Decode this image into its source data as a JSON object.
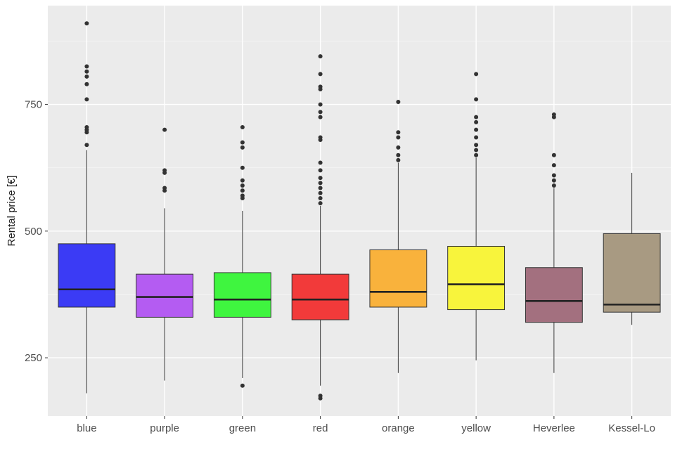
{
  "chart_data": {
    "type": "boxplot",
    "ylabel": "Rental price [€]",
    "xlabel": "",
    "ylim": [
      135,
      945
    ],
    "yticks": [
      250,
      500,
      750
    ],
    "grid": true,
    "legend": "none",
    "categories": [
      "blue",
      "purple",
      "green",
      "red",
      "orange",
      "yellow",
      "Heverlee",
      "Kessel-Lo"
    ],
    "colors": [
      "#3b3bf5",
      "#b45cf2",
      "#3ff53f",
      "#f23a3a",
      "#f9b23c",
      "#f8f43c",
      "#a3707f",
      "#a89a82"
    ],
    "series": [
      {
        "category": "blue",
        "min": 180,
        "q1": 350,
        "median": 385,
        "q3": 475,
        "max": 660,
        "outliers": [
          670,
          695,
          700,
          705,
          760,
          790,
          805,
          815,
          825,
          910
        ]
      },
      {
        "category": "purple",
        "min": 205,
        "q1": 330,
        "median": 370,
        "q3": 415,
        "max": 545,
        "outliers": [
          580,
          585,
          615,
          620,
          700
        ]
      },
      {
        "category": "green",
        "min": 210,
        "q1": 330,
        "median": 365,
        "q3": 418,
        "max": 540,
        "outliers": [
          195,
          565,
          570,
          580,
          590,
          600,
          625,
          665,
          675,
          705
        ]
      },
      {
        "category": "red",
        "min": 195,
        "q1": 325,
        "median": 365,
        "q3": 415,
        "max": 550,
        "outliers": [
          170,
          175,
          555,
          565,
          575,
          585,
          595,
          605,
          620,
          635,
          680,
          685,
          725,
          735,
          750,
          780,
          785,
          810,
          845
        ]
      },
      {
        "category": "orange",
        "min": 220,
        "q1": 350,
        "median": 380,
        "q3": 463,
        "max": 635,
        "outliers": [
          640,
          650,
          665,
          685,
          695,
          755
        ]
      },
      {
        "category": "yellow",
        "min": 245,
        "q1": 345,
        "median": 395,
        "q3": 470,
        "max": 645,
        "outliers": [
          650,
          660,
          670,
          685,
          700,
          715,
          725,
          760,
          810
        ]
      },
      {
        "category": "Heverlee",
        "min": 220,
        "q1": 320,
        "median": 362,
        "q3": 428,
        "max": 585,
        "outliers": [
          590,
          600,
          610,
          630,
          650,
          725,
          730
        ]
      },
      {
        "category": "Kessel-Lo",
        "min": 315,
        "q1": 340,
        "median": 355,
        "q3": 495,
        "max": 615,
        "outliers": []
      }
    ]
  }
}
